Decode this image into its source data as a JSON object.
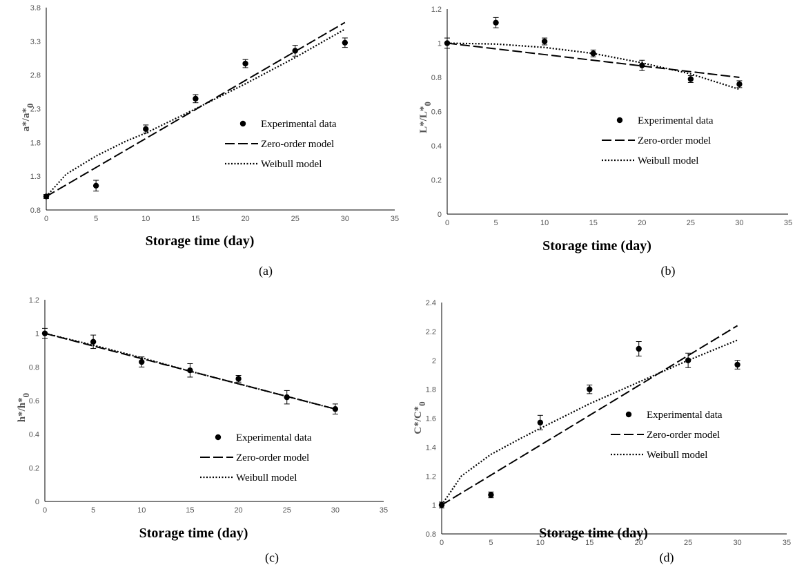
{
  "chart_data": [
    {
      "panel": "(a)",
      "type": "scatter",
      "xlabel": "Storage time (day)",
      "ylabel": "a*/a*",
      "ylabel_sub": "0",
      "xlim": [
        0,
        35
      ],
      "ylim": [
        0.8,
        3.8
      ],
      "xticks": [
        0,
        5,
        10,
        15,
        20,
        25,
        30,
        35
      ],
      "yticks": [
        0.8,
        1.3,
        1.8,
        2.3,
        2.8,
        3.3,
        3.8
      ],
      "ytick_labels": [
        "0.8",
        "1.3",
        "1.8",
        "2.3",
        "2.8",
        "3.3",
        "3.8"
      ],
      "legend_position": "right",
      "series": [
        {
          "name": "Experimental data",
          "kind": "points",
          "x": [
            0,
            5,
            10,
            15,
            20,
            25,
            30
          ],
          "y": [
            1.0,
            1.16,
            2.0,
            2.45,
            2.97,
            3.16,
            3.28
          ],
          "err": [
            0.03,
            0.08,
            0.06,
            0.06,
            0.06,
            0.08,
            0.07
          ]
        },
        {
          "name": "Zero-order model",
          "kind": "dashed",
          "x": [
            0,
            30
          ],
          "y": [
            1.0,
            3.58
          ]
        },
        {
          "name": "Weibull model",
          "kind": "dotted",
          "x": [
            0,
            2,
            5,
            8,
            10,
            15,
            20,
            25,
            30
          ],
          "y": [
            1.0,
            1.33,
            1.6,
            1.82,
            1.94,
            2.3,
            2.67,
            3.06,
            3.48
          ]
        }
      ]
    },
    {
      "panel": "(b)",
      "type": "scatter",
      "xlabel": "Storage time (day)",
      "ylabel": "L*/L*",
      "ylabel_sub": "0",
      "xlim": [
        0,
        35
      ],
      "ylim": [
        0,
        1.2
      ],
      "xticks": [
        0,
        5,
        10,
        15,
        20,
        25,
        30,
        35
      ],
      "yticks": [
        0,
        0.2,
        0.4,
        0.6,
        0.8,
        1.0,
        1.2
      ],
      "ytick_labels": [
        "0",
        "0.2",
        "0.4",
        "0.6",
        "0.8",
        "1",
        "1.2"
      ],
      "legend_position": "right",
      "series": [
        {
          "name": "Experimental data",
          "kind": "points",
          "x": [
            0,
            5,
            10,
            15,
            20,
            25,
            30
          ],
          "y": [
            1.0,
            1.12,
            1.01,
            0.94,
            0.87,
            0.79,
            0.76
          ],
          "err": [
            0.03,
            0.03,
            0.02,
            0.02,
            0.03,
            0.02,
            0.02
          ]
        },
        {
          "name": "Zero-order model",
          "kind": "dashed",
          "x": [
            0,
            30
          ],
          "y": [
            1.0,
            0.8
          ]
        },
        {
          "name": "Weibull model",
          "kind": "dotted",
          "x": [
            0,
            5,
            10,
            15,
            20,
            25,
            30
          ],
          "y": [
            1.0,
            0.995,
            0.975,
            0.94,
            0.885,
            0.82,
            0.73
          ]
        }
      ]
    },
    {
      "panel": "(c)",
      "type": "scatter",
      "xlabel": "Storage time (day)",
      "ylabel": "h*/h*",
      "ylabel_sub": "0",
      "xlim": [
        0,
        35
      ],
      "ylim": [
        0,
        1.2
      ],
      "xticks": [
        0,
        5,
        10,
        15,
        20,
        25,
        30,
        35
      ],
      "yticks": [
        0,
        0.2,
        0.4,
        0.6,
        0.8,
        1.0,
        1.2
      ],
      "ytick_labels": [
        "0",
        "0.2",
        "0.4",
        "0.6",
        "0.8",
        "1",
        "1.2"
      ],
      "legend_position": "right",
      "series": [
        {
          "name": "Experimental data",
          "kind": "points",
          "x": [
            0,
            5,
            10,
            15,
            20,
            25,
            30
          ],
          "y": [
            1.0,
            0.95,
            0.83,
            0.78,
            0.73,
            0.62,
            0.55
          ],
          "err": [
            0.03,
            0.04,
            0.03,
            0.04,
            0.02,
            0.04,
            0.03
          ]
        },
        {
          "name": "Zero-order model",
          "kind": "dashed",
          "x": [
            0,
            30
          ],
          "y": [
            1.0,
            0.55
          ]
        },
        {
          "name": "Weibull model",
          "kind": "dotted",
          "x": [
            0,
            5,
            10,
            15,
            20,
            25,
            30
          ],
          "y": [
            1.0,
            0.93,
            0.855,
            0.775,
            0.7,
            0.625,
            0.55
          ]
        }
      ]
    },
    {
      "panel": "(d)",
      "type": "scatter",
      "xlabel": "Storage time (day)",
      "ylabel": "C*/C*",
      "ylabel_sub": "0",
      "xlim": [
        0,
        35
      ],
      "ylim": [
        0.8,
        2.4
      ],
      "xticks": [
        0,
        5,
        10,
        15,
        20,
        25,
        30,
        35
      ],
      "yticks": [
        0.8,
        1.0,
        1.2,
        1.4,
        1.6,
        1.8,
        2.0,
        2.2,
        2.4
      ],
      "ytick_labels": [
        "0.8",
        "1",
        "1.2",
        "1.4",
        "1.6",
        "1.8",
        "2",
        "2.2",
        "2.4"
      ],
      "legend_position": "right",
      "series": [
        {
          "name": "Experimental data",
          "kind": "points",
          "x": [
            0,
            5,
            10,
            15,
            20,
            25,
            30
          ],
          "y": [
            1.0,
            1.07,
            1.57,
            1.8,
            2.08,
            2.0,
            1.97
          ],
          "err": [
            0.02,
            0.02,
            0.05,
            0.03,
            0.05,
            0.05,
            0.03
          ]
        },
        {
          "name": "Zero-order model",
          "kind": "dashed",
          "x": [
            0,
            30
          ],
          "y": [
            1.0,
            2.24
          ]
        },
        {
          "name": "Weibull model",
          "kind": "dotted",
          "x": [
            0,
            2,
            5,
            8,
            10,
            15,
            20,
            25,
            30
          ],
          "y": [
            1.0,
            1.2,
            1.35,
            1.46,
            1.53,
            1.7,
            1.85,
            2.0,
            2.14
          ]
        }
      ]
    }
  ]
}
